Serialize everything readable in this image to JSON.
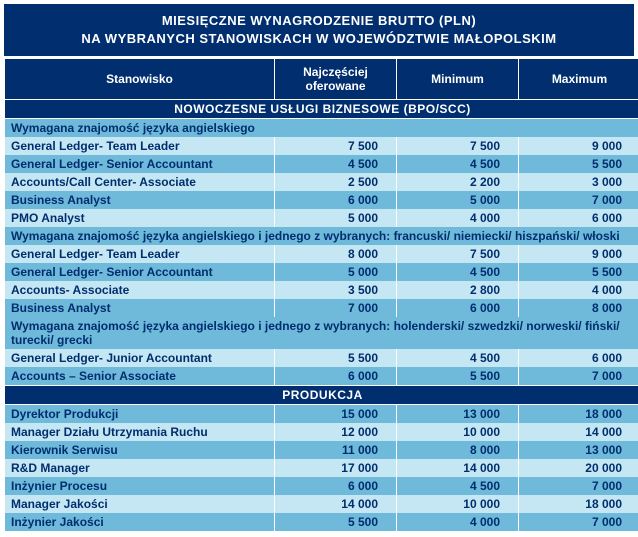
{
  "colors": {
    "header_bg": "#002e6e",
    "header_text": "#ffffff",
    "text": "#002e6e",
    "row_dark": "#6fb9db",
    "row_light": "#c5e7f4"
  },
  "typography": {
    "font_family": "Arial",
    "title_fontsize": 13,
    "body_fontsize": 12,
    "weight": "bold"
  },
  "title_line1": "MIESIĘCZNE WYNAGRODZENIE BRUTTO (PLN)",
  "title_line2": "NA WYBRANYCH STANOWISKACH W WOJEWÓDZTWIE MAŁOPOLSKIM",
  "columns": {
    "c0": "Stanowisko",
    "c1": "Najczęściej oferowane",
    "c2": "Minimum",
    "c3": "Maximum"
  },
  "sections": [
    {
      "heading": "NOWOCZESNE USŁUGI BIZNESOWE (BPO/SCC)",
      "groups": [
        {
          "note": "Wymagana znajomość języka angielskiego",
          "rows": [
            {
              "pos": "General Ledger- Team Leader",
              "v1": "7 500",
              "v2": "7 500",
              "v3": "9 000"
            },
            {
              "pos": "General Ledger- Senior Accountant",
              "v1": "4 500",
              "v2": "4 500",
              "v3": "5 500"
            },
            {
              "pos": "Accounts/Call Center- Associate",
              "v1": "2 500",
              "v2": "2 200",
              "v3": "3 000"
            },
            {
              "pos": "Business Analyst",
              "v1": "6 000",
              "v2": "5 000",
              "v3": "7 000"
            },
            {
              "pos": "PMO Analyst",
              "v1": "5 000",
              "v2": "4 000",
              "v3": "6 000"
            }
          ]
        },
        {
          "note": "Wymagana znajomość języka angielskiego i jednego z wybranych: francuski/ niemiecki/ hiszpański/ włoski",
          "rows": [
            {
              "pos": "General Ledger- Team Leader",
              "v1": "8 000",
              "v2": "7 500",
              "v3": "9 000"
            },
            {
              "pos": "General Ledger- Senior Accountant",
              "v1": "5 000",
              "v2": "4 500",
              "v3": "5 500"
            },
            {
              "pos": "Accounts- Associate",
              "v1": "3 500",
              "v2": "2 800",
              "v3": "4 000"
            },
            {
              "pos": "Business Analyst",
              "v1": "7 000",
              "v2": "6 000",
              "v3": "8 000"
            }
          ]
        },
        {
          "note": "Wymagana znajomość języka angielskiego i jednego z wybranych: holenderski/ szwedzki/ norweski/ fiński/ turecki/ grecki",
          "rows": [
            {
              "pos": "General Ledger- Junior Accountant",
              "v1": "5 500",
              "v2": "4 500",
              "v3": "6 000"
            },
            {
              "pos": "Accounts – Senior Associate",
              "v1": "6 000",
              "v2": "5 500",
              "v3": "7 000"
            }
          ]
        }
      ]
    },
    {
      "heading": "PRODUKCJA",
      "groups": [
        {
          "note": null,
          "rows": [
            {
              "pos": "Dyrektor Produkcji",
              "v1": "15 000",
              "v2": "13 000",
              "v3": "18 000"
            },
            {
              "pos": "Manager Działu Utrzymania Ruchu",
              "v1": "12 000",
              "v2": "10 000",
              "v3": "14 000"
            },
            {
              "pos": "Kierownik Serwisu",
              "v1": "11 000",
              "v2": "8 000",
              "v3": "13 000"
            },
            {
              "pos": "R&D Manager",
              "v1": "17 000",
              "v2": "14 000",
              "v3": "20 000"
            },
            {
              "pos": "Inżynier Procesu",
              "v1": "6 000",
              "v2": "4 500",
              "v3": "7 000"
            },
            {
              "pos": "Manager Jakości",
              "v1": "14 000",
              "v2": "10 000",
              "v3": "18 000"
            },
            {
              "pos": "Inżynier Jakości",
              "v1": "5 500",
              "v2": "4 000",
              "v3": "7 000"
            }
          ]
        }
      ]
    }
  ]
}
